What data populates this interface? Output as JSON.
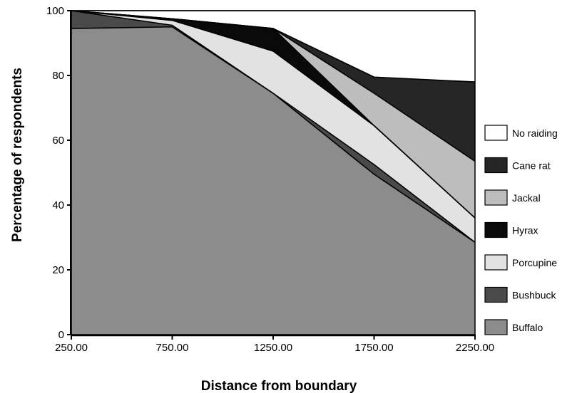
{
  "chart_data": {
    "type": "area",
    "stacked": true,
    "title": "",
    "xlabel": "Distance from boundary",
    "ylabel": "Percentage of respondents",
    "x": [
      250,
      750,
      1250,
      1750,
      2250
    ],
    "x_tick_labels": [
      "250.00",
      "750.00",
      "1250.00",
      "1750.00",
      "2250.00"
    ],
    "ylim": [
      0,
      100
    ],
    "y_ticks": [
      0,
      20,
      40,
      60,
      80,
      100
    ],
    "y_tick_labels": [
      "0",
      "20",
      "40",
      "60",
      "80",
      "100"
    ],
    "grid": false,
    "legend_position": "right",
    "series": [
      {
        "name": "Buffalo",
        "color": "#8c8c8c",
        "values": [
          94.5,
          95.0,
          74.5,
          49.5,
          28.5
        ]
      },
      {
        "name": "Bushbuck",
        "color": "#4a4a4a",
        "values": [
          5.5,
          0.5,
          0.0,
          3.0,
          0.0
        ]
      },
      {
        "name": "Porcupine",
        "color": "#e2e2e2",
        "values": [
          0.0,
          1.5,
          13.0,
          12.0,
          7.5
        ]
      },
      {
        "name": "Hyrax",
        "color": "#0a0a0a",
        "values": [
          0.0,
          0.5,
          7.0,
          0.0,
          0.0
        ]
      },
      {
        "name": "Jackal",
        "color": "#bdbdbd",
        "values": [
          0.0,
          0.0,
          0.0,
          10.0,
          17.5
        ]
      },
      {
        "name": "Cane rat",
        "color": "#262626",
        "values": [
          0.0,
          0.0,
          0.0,
          5.0,
          24.5
        ]
      },
      {
        "name": "No raiding",
        "color": "#ffffff",
        "values": [
          0.0,
          2.5,
          5.5,
          20.5,
          22.0
        ]
      }
    ],
    "legend_order": [
      "No raiding",
      "Cane rat",
      "Jackal",
      "Hyrax",
      "Porcupine",
      "Bushbuck",
      "Buffalo"
    ]
  }
}
